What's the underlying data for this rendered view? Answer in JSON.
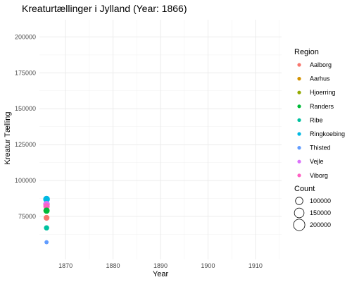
{
  "chart_data": {
    "type": "scatter",
    "title": "Kreaturtællinger i Jylland (Year: 1866)",
    "xlabel": "Year",
    "ylabel": "Kreatur Tælling",
    "xlim": [
      1864.5,
      1915.5
    ],
    "ylim": [
      45000,
      212000
    ],
    "x_ticks": [
      1870,
      1880,
      1890,
      1900,
      1910
    ],
    "y_ticks": [
      75000,
      100000,
      125000,
      150000,
      175000,
      200000
    ],
    "x_tick_labels": [
      "1870",
      "1880",
      "1890",
      "1900",
      "1910"
    ],
    "y_tick_labels": [
      "75000",
      "100000",
      "125000",
      "150000",
      "175000",
      "200000"
    ],
    "grid": true,
    "legend_placement": "right",
    "color_legend": {
      "title": "Region",
      "entries": [
        {
          "name": "Aalborg",
          "color": "#F8766D"
        },
        {
          "name": "Aarhus",
          "color": "#D39200"
        },
        {
          "name": "Hjoerring",
          "color": "#93AA00"
        },
        {
          "name": "Randers",
          "color": "#00BA38"
        },
        {
          "name": "Ribe",
          "color": "#00C19F"
        },
        {
          "name": "Ringkoebing",
          "color": "#00B9E3"
        },
        {
          "name": "Thisted",
          "color": "#619CFF"
        },
        {
          "name": "Vejle",
          "color": "#DB72FB"
        },
        {
          "name": "Viborg",
          "color": "#FF61C3"
        }
      ]
    },
    "size_legend": {
      "title": "Count",
      "entries": [
        {
          "label": "100000",
          "value": 100000
        },
        {
          "label": "150000",
          "value": 150000
        },
        {
          "label": "200000",
          "value": 200000
        }
      ]
    },
    "series": [
      {
        "name": "Aalborg",
        "x": 1866,
        "y": 74000
      },
      {
        "name": "Aarhus",
        "x": 1866,
        "y": 83500
      },
      {
        "name": "Hjoerring",
        "x": 1866,
        "y": 79000
      },
      {
        "name": "Randers",
        "x": 1866,
        "y": 79000
      },
      {
        "name": "Ribe",
        "x": 1866,
        "y": 67000
      },
      {
        "name": "Ringkoebing",
        "x": 1866,
        "y": 87000
      },
      {
        "name": "Thisted",
        "x": 1866,
        "y": 57000
      },
      {
        "name": "Vejle",
        "x": 1866,
        "y": 83500
      },
      {
        "name": "Viborg",
        "x": 1866,
        "y": 82000
      }
    ]
  }
}
